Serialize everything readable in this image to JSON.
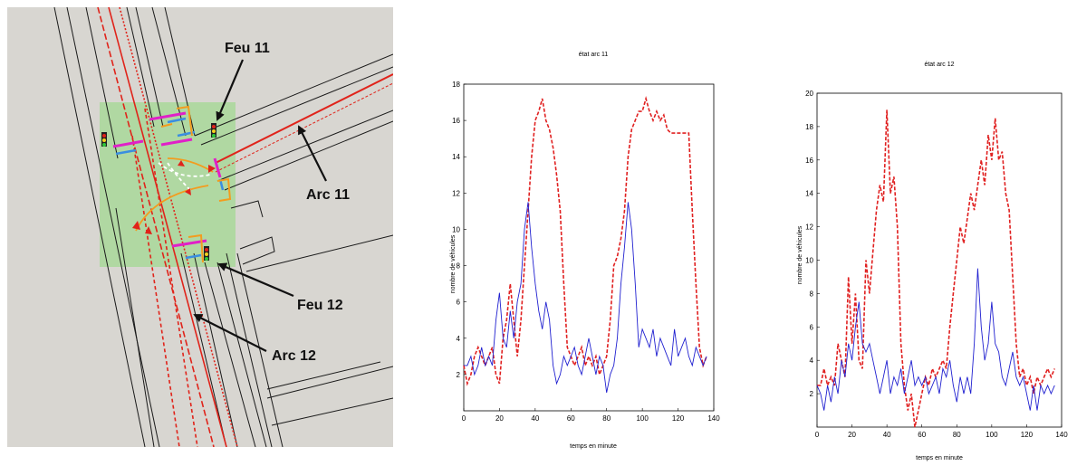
{
  "map": {
    "labels": {
      "feu11": "Feu  11",
      "arc11": "Arc 11",
      "feu12": "Feu  12",
      "arc12": "Arc 12"
    },
    "colors": {
      "background": "#d8d6d1",
      "intersection_zone": "#a9d89a",
      "road_line": "#1a1a1a",
      "red_link": "#e0231a",
      "orange_path": "#f39c1e",
      "magenta_detector": "#e020c8",
      "blue_marker": "#3a8ee0"
    }
  },
  "chart_data": [
    {
      "type": "line",
      "title": "état arc 11",
      "xlabel": "temps en minute",
      "ylabel": "nombre de véhicules",
      "xlim": [
        0,
        140
      ],
      "ylim": [
        0,
        18
      ],
      "xticks": [
        0,
        20,
        40,
        60,
        80,
        100,
        120,
        140
      ],
      "yticks": [
        2,
        4,
        6,
        8,
        10,
        12,
        14,
        16,
        18
      ],
      "grid": false,
      "series": [
        {
          "color": "#e02020",
          "dash": "dashed",
          "x": [
            0,
            2,
            4,
            6,
            8,
            10,
            12,
            14,
            16,
            18,
            20,
            22,
            24,
            26,
            28,
            30,
            32,
            34,
            36,
            38,
            40,
            42,
            44,
            46,
            48,
            50,
            52,
            54,
            56,
            58,
            60,
            62,
            64,
            66,
            68,
            70,
            72,
            74,
            76,
            78,
            80,
            82,
            84,
            86,
            88,
            90,
            92,
            94,
            96,
            98,
            100,
            102,
            104,
            106,
            108,
            110,
            112,
            114,
            116,
            118,
            120,
            122,
            124,
            126,
            128,
            130,
            132,
            134,
            136
          ],
          "y": [
            2.5,
            1.5,
            2,
            3,
            3.5,
            3,
            2.5,
            3,
            3.5,
            2,
            1.5,
            4,
            5,
            7,
            5,
            3,
            5,
            8,
            11,
            14,
            16,
            16.5,
            17.2,
            16,
            15.5,
            14.5,
            13,
            11,
            7,
            3.5,
            3,
            2.5,
            3,
            3.5,
            2.5,
            3,
            2.5,
            3,
            2,
            2.5,
            3,
            5,
            8,
            8.5,
            9.5,
            11,
            14,
            15.5,
            16,
            16.5,
            16.5,
            17.2,
            16.5,
            16,
            16.5,
            16,
            16.3,
            15.5,
            15.3,
            15.3,
            15.3,
            15.3,
            15.3,
            15.3,
            11,
            7,
            3.5,
            2.5,
            3
          ]
        },
        {
          "color": "#2020d0",
          "dash": "solid",
          "x": [
            0,
            2,
            4,
            6,
            8,
            10,
            12,
            14,
            16,
            18,
            20,
            22,
            24,
            26,
            28,
            30,
            32,
            34,
            36,
            38,
            40,
            42,
            44,
            46,
            48,
            50,
            52,
            54,
            56,
            58,
            60,
            62,
            64,
            66,
            68,
            70,
            72,
            74,
            76,
            78,
            80,
            82,
            84,
            86,
            88,
            90,
            92,
            94,
            96,
            98,
            100,
            102,
            104,
            106,
            108,
            110,
            112,
            114,
            116,
            118,
            120,
            122,
            124,
            126,
            128,
            130,
            132,
            134,
            136
          ],
          "y": [
            2.5,
            2.5,
            3,
            2,
            2.5,
            3.5,
            2.5,
            3,
            2.5,
            5,
            6.5,
            4,
            3.5,
            5.5,
            4,
            6,
            7,
            10,
            11.5,
            9,
            7,
            5.5,
            4.5,
            6,
            5,
            2.5,
            1.5,
            2,
            3,
            2.5,
            3,
            3.5,
            2.5,
            2,
            3,
            4,
            3,
            2,
            3,
            2.5,
            1,
            2,
            2.5,
            4,
            7,
            9,
            11.5,
            10,
            7,
            3.5,
            4.5,
            4,
            3.5,
            4.5,
            3,
            4,
            3.5,
            3,
            2.5,
            4.5,
            3,
            3.5,
            4,
            3,
            2.5,
            3.5,
            3,
            2.5,
            3
          ]
        }
      ]
    },
    {
      "type": "line",
      "title": "état arc 12",
      "xlabel": "temps en minute",
      "ylabel": "nombre de véhicules",
      "xlim": [
        0,
        140
      ],
      "ylim": [
        0,
        20
      ],
      "xticks": [
        0,
        20,
        40,
        60,
        80,
        100,
        120,
        140
      ],
      "yticks": [
        2,
        4,
        6,
        8,
        10,
        12,
        14,
        16,
        18,
        20
      ],
      "grid": false,
      "series": [
        {
          "color": "#e02020",
          "dash": "dashed",
          "x": [
            0,
            2,
            4,
            6,
            8,
            10,
            12,
            14,
            16,
            18,
            20,
            22,
            24,
            26,
            28,
            30,
            32,
            34,
            36,
            38,
            40,
            42,
            44,
            46,
            48,
            50,
            52,
            54,
            56,
            58,
            60,
            62,
            64,
            66,
            68,
            70,
            72,
            74,
            76,
            78,
            80,
            82,
            84,
            86,
            88,
            90,
            92,
            94,
            96,
            98,
            100,
            102,
            104,
            106,
            108,
            110,
            112,
            114,
            116,
            118,
            120,
            122,
            124,
            126,
            128,
            130,
            132,
            134,
            136
          ],
          "y": [
            2.5,
            2.5,
            3.5,
            2.5,
            3,
            2.5,
            5,
            4,
            3,
            9,
            5,
            8,
            4,
            3.5,
            10,
            8,
            10.5,
            13,
            14.5,
            13.5,
            19,
            14,
            15,
            12,
            5,
            2.5,
            1,
            2,
            0,
            1,
            2,
            3,
            2.5,
            3.5,
            3,
            3.5,
            4,
            3.5,
            6,
            8,
            10,
            12,
            11,
            12.5,
            14,
            13,
            14.5,
            16,
            14.5,
            17.5,
            16,
            18.5,
            16,
            16.5,
            14,
            13,
            9,
            5,
            3,
            3.5,
            2.5,
            3,
            2,
            3,
            2.5,
            3,
            3.5,
            3,
            3.5
          ]
        },
        {
          "color": "#2020d0",
          "dash": "solid",
          "x": [
            0,
            2,
            4,
            6,
            8,
            10,
            12,
            14,
            16,
            18,
            20,
            22,
            24,
            26,
            28,
            30,
            32,
            34,
            36,
            38,
            40,
            42,
            44,
            46,
            48,
            50,
            52,
            54,
            56,
            58,
            60,
            62,
            64,
            66,
            68,
            70,
            72,
            74,
            76,
            78,
            80,
            82,
            84,
            86,
            88,
            90,
            92,
            94,
            96,
            98,
            100,
            102,
            104,
            106,
            108,
            110,
            112,
            114,
            116,
            118,
            120,
            122,
            124,
            126,
            128,
            130,
            132,
            134,
            136
          ],
          "y": [
            2.5,
            2,
            1,
            2.5,
            1.5,
            3,
            2,
            4,
            3,
            5,
            4,
            6,
            7.5,
            5,
            4.5,
            5,
            4,
            3,
            2,
            3,
            4,
            2,
            3,
            2.5,
            3.5,
            2,
            3,
            4,
            2.5,
            3,
            2.5,
            3,
            2,
            2.5,
            3,
            2,
            3.5,
            3,
            4,
            2.5,
            1.5,
            3,
            2,
            3,
            2,
            5,
            9.5,
            6,
            4,
            5,
            7.5,
            5,
            4.5,
            3,
            2.5,
            3.5,
            4.5,
            3,
            2.5,
            3,
            2,
            1,
            2.5,
            1,
            2.5,
            2,
            2.5,
            2,
            2.5
          ]
        }
      ]
    }
  ]
}
